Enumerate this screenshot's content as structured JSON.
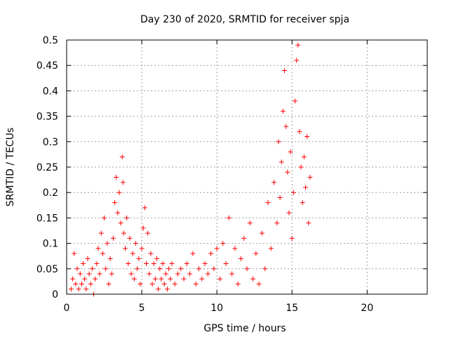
{
  "chart_data": {
    "type": "scatter",
    "title": "Day 230 of 2020, SRMTID for receiver spja",
    "xlabel": "GPS time / hours",
    "ylabel": "SRMTID / TECUs",
    "xlim": [
      0,
      24
    ],
    "ylim": [
      0,
      0.5
    ],
    "xticks": [
      0,
      5,
      10,
      15,
      20
    ],
    "xtick_labels": [
      "0",
      "5",
      "10",
      "15",
      "20"
    ],
    "yticks": [
      0,
      0.05,
      0.1,
      0.15,
      0.2,
      0.25,
      0.3,
      0.35,
      0.4,
      0.45,
      0.5
    ],
    "ytick_labels": [
      "0",
      "0.05",
      "0.1",
      "0.15",
      "0.2",
      "0.25",
      "0.3",
      "0.35",
      "0.4",
      "0.45",
      "0.5"
    ],
    "grid": true,
    "marker": "+",
    "color": "#ff0000",
    "points": [
      [
        0.3,
        0.01
      ],
      [
        0.4,
        0.03
      ],
      [
        0.5,
        0.08
      ],
      [
        0.6,
        0.02
      ],
      [
        0.7,
        0.05
      ],
      [
        0.8,
        0.01
      ],
      [
        0.9,
        0.04
      ],
      [
        1.0,
        0.02
      ],
      [
        1.1,
        0.06
      ],
      [
        1.2,
        0.03
      ],
      [
        1.3,
        0.01
      ],
      [
        1.4,
        0.07
      ],
      [
        1.5,
        0.04
      ],
      [
        1.6,
        0.02
      ],
      [
        1.7,
        0.05
      ],
      [
        1.8,
        0.0
      ],
      [
        1.9,
        0.03
      ],
      [
        2.0,
        0.06
      ],
      [
        2.1,
        0.09
      ],
      [
        2.2,
        0.04
      ],
      [
        2.3,
        0.12
      ],
      [
        2.4,
        0.08
      ],
      [
        2.5,
        0.15
      ],
      [
        2.6,
        0.05
      ],
      [
        2.7,
        0.1
      ],
      [
        2.8,
        0.02
      ],
      [
        2.9,
        0.07
      ],
      [
        3.0,
        0.04
      ],
      [
        3.1,
        0.11
      ],
      [
        3.2,
        0.18
      ],
      [
        3.3,
        0.23
      ],
      [
        3.4,
        0.16
      ],
      [
        3.5,
        0.2
      ],
      [
        3.6,
        0.14
      ],
      [
        3.7,
        0.27
      ],
      [
        3.75,
        0.22
      ],
      [
        3.8,
        0.12
      ],
      [
        3.9,
        0.09
      ],
      [
        4.0,
        0.15
      ],
      [
        4.1,
        0.06
      ],
      [
        4.2,
        0.11
      ],
      [
        4.3,
        0.04
      ],
      [
        4.4,
        0.08
      ],
      [
        4.5,
        0.03
      ],
      [
        4.6,
        0.1
      ],
      [
        4.7,
        0.05
      ],
      [
        4.8,
        0.07
      ],
      [
        4.9,
        0.02
      ],
      [
        5.0,
        0.09
      ],
      [
        5.1,
        0.13
      ],
      [
        5.2,
        0.17
      ],
      [
        5.3,
        0.06
      ],
      [
        5.4,
        0.12
      ],
      [
        5.5,
        0.04
      ],
      [
        5.6,
        0.08
      ],
      [
        5.7,
        0.02
      ],
      [
        5.8,
        0.06
      ],
      [
        5.9,
        0.03
      ],
      [
        6.0,
        0.07
      ],
      [
        6.1,
        0.01
      ],
      [
        6.2,
        0.05
      ],
      [
        6.3,
        0.03
      ],
      [
        6.4,
        0.06
      ],
      [
        6.5,
        0.02
      ],
      [
        6.6,
        0.04
      ],
      [
        6.7,
        0.01
      ],
      [
        6.8,
        0.05
      ],
      [
        6.9,
        0.03
      ],
      [
        7.0,
        0.06
      ],
      [
        7.2,
        0.02
      ],
      [
        7.4,
        0.04
      ],
      [
        7.6,
        0.05
      ],
      [
        7.8,
        0.03
      ],
      [
        8.0,
        0.06
      ],
      [
        8.2,
        0.04
      ],
      [
        8.4,
        0.08
      ],
      [
        8.6,
        0.02
      ],
      [
        8.8,
        0.05
      ],
      [
        9.0,
        0.03
      ],
      [
        9.2,
        0.06
      ],
      [
        9.4,
        0.04
      ],
      [
        9.6,
        0.08
      ],
      [
        9.8,
        0.05
      ],
      [
        10.0,
        0.09
      ],
      [
        10.2,
        0.03
      ],
      [
        10.4,
        0.1
      ],
      [
        10.6,
        0.06
      ],
      [
        10.8,
        0.15
      ],
      [
        11.0,
        0.04
      ],
      [
        11.2,
        0.09
      ],
      [
        11.4,
        0.02
      ],
      [
        11.6,
        0.07
      ],
      [
        11.8,
        0.11
      ],
      [
        12.0,
        0.05
      ],
      [
        12.2,
        0.14
      ],
      [
        12.4,
        0.03
      ],
      [
        12.6,
        0.08
      ],
      [
        12.8,
        0.02
      ],
      [
        13.0,
        0.12
      ],
      [
        13.2,
        0.05
      ],
      [
        13.4,
        0.18
      ],
      [
        13.6,
        0.09
      ],
      [
        13.8,
        0.22
      ],
      [
        14.0,
        0.14
      ],
      [
        14.1,
        0.3
      ],
      [
        14.2,
        0.19
      ],
      [
        14.3,
        0.26
      ],
      [
        14.4,
        0.36
      ],
      [
        14.5,
        0.44
      ],
      [
        14.6,
        0.33
      ],
      [
        14.7,
        0.24
      ],
      [
        14.8,
        0.16
      ],
      [
        14.9,
        0.28
      ],
      [
        15.0,
        0.11
      ],
      [
        15.1,
        0.2
      ],
      [
        15.2,
        0.38
      ],
      [
        15.3,
        0.46
      ],
      [
        15.4,
        0.49
      ],
      [
        15.5,
        0.32
      ],
      [
        15.6,
        0.25
      ],
      [
        15.7,
        0.18
      ],
      [
        15.8,
        0.27
      ],
      [
        15.9,
        0.21
      ],
      [
        16.0,
        0.31
      ],
      [
        16.1,
        0.14
      ],
      [
        16.2,
        0.23
      ]
    ]
  }
}
